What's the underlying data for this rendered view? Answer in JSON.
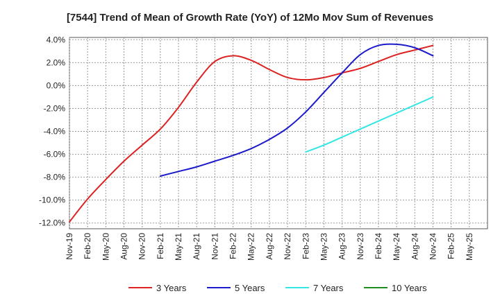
{
  "chart_data": {
    "type": "line",
    "title": "[7544]  Trend of Mean of Growth Rate (YoY) of 12Mo Mov Sum of Revenues",
    "xlabel": "",
    "ylabel": "",
    "ylim": [
      -12.5,
      4.2
    ],
    "yticks": [
      4,
      2,
      0,
      -2,
      -4,
      -6,
      -8,
      -10,
      -12
    ],
    "ytick_labels": [
      "4.0%",
      "2.0%",
      "0.0%",
      "-2.0%",
      "-4.0%",
      "-6.0%",
      "-8.0%",
      "-10.0%",
      "-12.0%"
    ],
    "categories": [
      "Nov-19",
      "Feb-20",
      "May-20",
      "Aug-20",
      "Nov-20",
      "Feb-21",
      "May-21",
      "Aug-21",
      "Nov-21",
      "Feb-22",
      "May-22",
      "Aug-22",
      "Nov-22",
      "Feb-23",
      "May-23",
      "Aug-23",
      "Nov-23",
      "Feb-24",
      "May-24",
      "Aug-24",
      "Nov-24",
      "Feb-25",
      "May-25"
    ],
    "grid": true,
    "legend_position": "bottom",
    "series": [
      {
        "name": "3 Years",
        "color": "#dd2020",
        "values": [
          -11.9,
          -9.9,
          -8.2,
          -6.6,
          -5.2,
          -3.8,
          -1.9,
          0.3,
          2.1,
          2.6,
          2.2,
          1.4,
          0.7,
          0.5,
          0.7,
          1.1,
          1.5,
          2.1,
          2.7,
          3.1,
          3.5,
          null,
          null
        ]
      },
      {
        "name": "5 Years",
        "color": "#1a1acc",
        "values": [
          null,
          null,
          null,
          null,
          null,
          -7.9,
          -7.5,
          -7.1,
          -6.6,
          -6.1,
          -5.5,
          -4.7,
          -3.7,
          -2.3,
          -0.6,
          1.1,
          2.7,
          3.5,
          3.6,
          3.3,
          2.6,
          null,
          null
        ]
      },
      {
        "name": "7 Years",
        "color": "#33e6e6",
        "values": [
          null,
          null,
          null,
          null,
          null,
          null,
          null,
          null,
          null,
          null,
          null,
          null,
          null,
          -5.8,
          -5.2,
          -4.5,
          -3.8,
          -3.1,
          -2.4,
          -1.7,
          -1.0,
          null,
          null
        ]
      },
      {
        "name": "10 Years",
        "color": "#1c8c1c",
        "values": [
          null,
          null,
          null,
          null,
          null,
          null,
          null,
          null,
          null,
          null,
          null,
          null,
          null,
          null,
          null,
          null,
          null,
          null,
          null,
          null,
          null,
          null,
          null
        ]
      }
    ]
  }
}
